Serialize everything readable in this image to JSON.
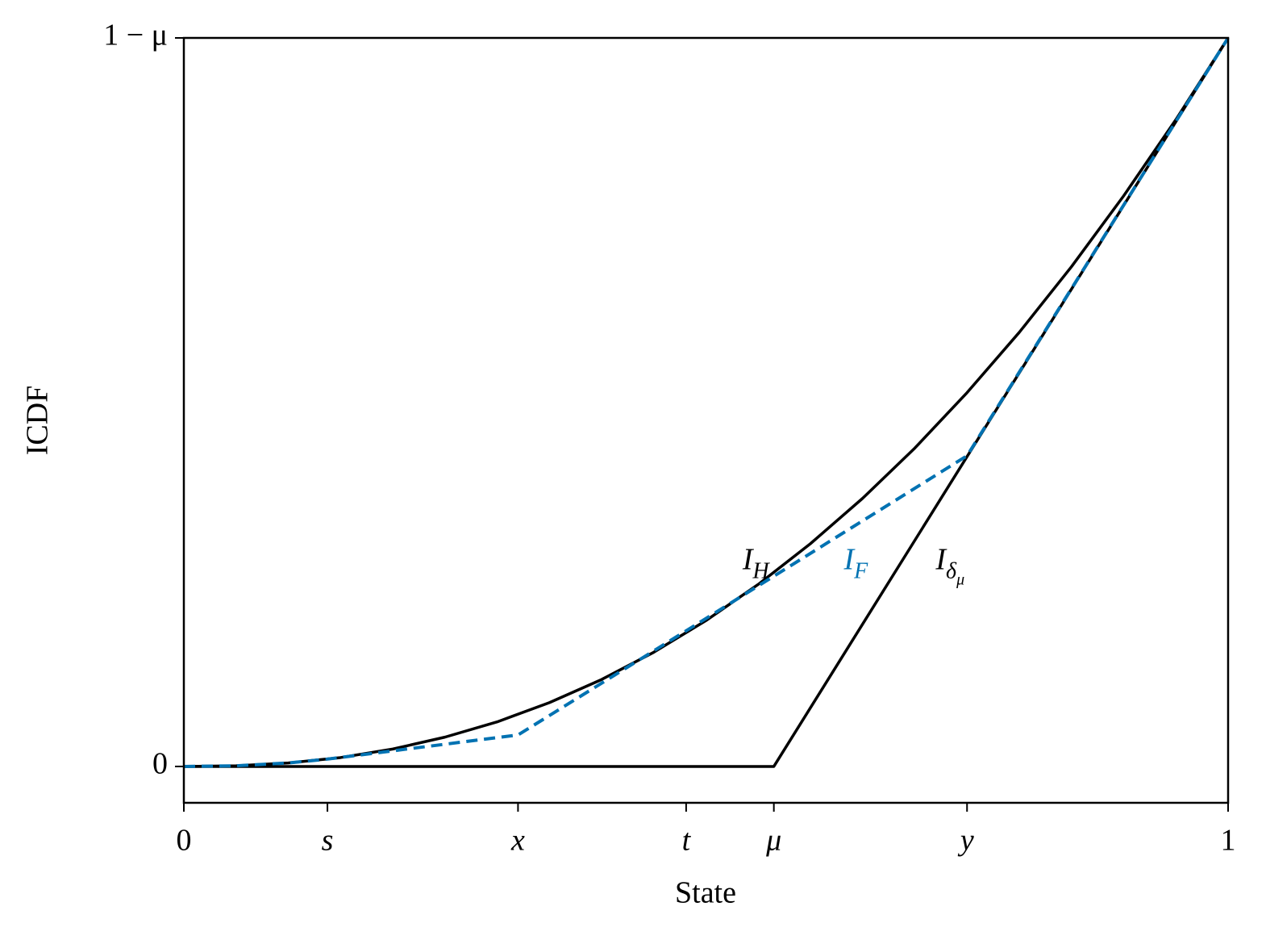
{
  "chart_data": {
    "type": "line",
    "xlabel": "State",
    "ylabel": "ICDF",
    "xlim": [
      0,
      1
    ],
    "ylim": [
      -0.0217,
      0.435
    ],
    "xticks": [
      0,
      {
        "value": 0.1375,
        "label": "s"
      },
      {
        "value": 0.32,
        "label": "x"
      },
      {
        "value": 0.481,
        "label": "t"
      },
      {
        "value": 0.565,
        "label": "μ"
      },
      {
        "value": 0.75,
        "label": "y"
      },
      1
    ],
    "yticks": [
      0,
      {
        "value": 0.435,
        "label": "1 − μ"
      }
    ],
    "grid": false,
    "series": [
      {
        "color": "#000000",
        "dashed": false,
        "x": [
          0,
          0.05,
          0.1,
          0.15,
          0.2,
          0.25,
          0.3,
          0.35,
          0.4,
          0.45,
          0.5,
          0.55,
          0.6,
          0.65,
          0.7,
          0.75,
          0.8,
          0.85,
          0.9,
          0.95,
          1
        ],
        "values": [
          0,
          0.0004,
          0.0021,
          0.0053,
          0.0104,
          0.0175,
          0.0266,
          0.0381,
          0.0519,
          0.0682,
          0.0871,
          0.1087,
          0.133,
          0.1601,
          0.1901,
          0.2232,
          0.2592,
          0.2984,
          0.3407,
          0.3862,
          0.435
        ]
      },
      {
        "color": "#000000",
        "dashed": false,
        "x": [
          0,
          0.565,
          1
        ],
        "values": [
          0,
          0,
          0.435
        ]
      },
      {
        "color": "#0072b2",
        "dashed": true,
        "x": [
          0,
          0.05,
          0.1,
          0.1375,
          0.32,
          0.481,
          0.75,
          1
        ],
        "values": [
          0,
          0.0004,
          0.0021,
          0.0044,
          0.0188,
          0.081,
          0.1855,
          0.435
        ]
      }
    ],
    "annotations": [
      {
        "main": "I",
        "sub": "H",
        "color": "#000000",
        "x": 0.535,
        "y": 0.122
      },
      {
        "main": "I",
        "sub": "F",
        "color": "#0072b2",
        "x": 0.632,
        "y": 0.122
      },
      {
        "main": "I",
        "sub": "δ",
        "subsub": "μ",
        "color": "#000000",
        "x": 0.72,
        "y": 0.122
      }
    ]
  }
}
